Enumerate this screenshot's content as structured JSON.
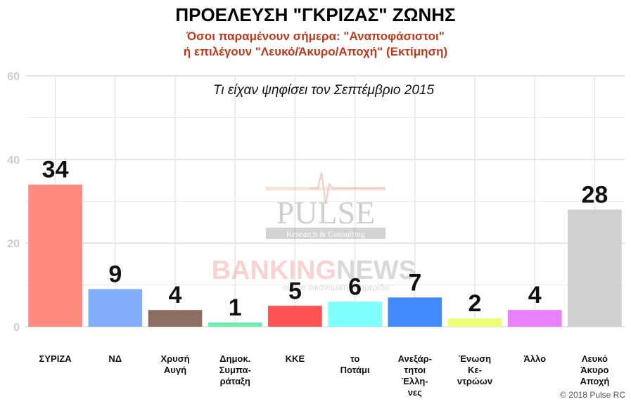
{
  "title": "ΠΡΟΕΛΕΥΣΗ \"ΓΚΡΙΖΑΣ\" ΖΩΝΗΣ",
  "subtitle_line1": "Όσοι παραμένουν σήμερα: \"Αναποφάσιστοι\"",
  "subtitle_line2": "ή επιλέγουν \"Λευκό/Άκυρο/Αποχή\" (Εκτίμηση)",
  "copyright": "© 2018 Pulse RC",
  "watermarks": {
    "pulse": "PULSE",
    "pulse_sub": "Research & Consulting",
    "banking": "BANKING",
    "news": "NEWS",
    "banking_sub": "online οικονομική εφημερίδα"
  },
  "chart_data": {
    "type": "bar",
    "annotation": "Τι είχαν ψηφίσει τον Σεπτέμβριο 2015",
    "categories": [
      [
        "ΣΥΡΙΖΑ"
      ],
      [
        "ΝΔ"
      ],
      [
        "Χρυσή",
        "Αυγή"
      ],
      [
        "Δημοκ.",
        "Συμπα-",
        "ράταξη"
      ],
      [
        "ΚΚΕ"
      ],
      [
        "το",
        "Ποτάμι"
      ],
      [
        "Ανεξάρ-",
        "τητοι",
        "Έλλη-",
        "νες"
      ],
      [
        "Ένωση",
        "Κε-",
        "ντρώων"
      ],
      [
        "Άλλο"
      ],
      [
        "Λευκό",
        "Άκυρο",
        "Αποχή"
      ]
    ],
    "values": [
      34,
      9,
      4,
      1,
      5,
      6,
      7,
      2,
      4,
      28
    ],
    "colors": [
      "#ff8a80",
      "#82aefc",
      "#8d6e63",
      "#69f0ae",
      "#ff5252",
      "#80ffff",
      "#448aff",
      "#eeff77",
      "#ea80fc",
      "#d0d0d0"
    ],
    "ylim": [
      0,
      60
    ],
    "yticks": [
      0,
      20,
      40,
      60
    ],
    "grid": true,
    "legend": "none"
  }
}
